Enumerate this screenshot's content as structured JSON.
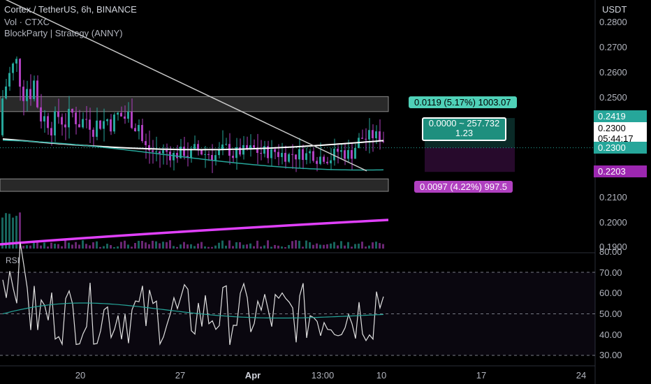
{
  "legend": {
    "title": "Cortex / TetherUS, 6h, BINANCE",
    "volume": "Vol · CTXC",
    "strategy": "BlockParty | Strategy (ANNY)"
  },
  "currency": "USDT",
  "price_axis": [
    "0.2800",
    "0.2700",
    "0.2600",
    "0.2500",
    "0.2100",
    "0.2000",
    "0.1900"
  ],
  "x_axis": [
    "20",
    "27",
    "Apr",
    "13:00",
    "10",
    "17",
    "24"
  ],
  "rsi": {
    "label": "RSI",
    "ticks": [
      "80.00",
      "70.00",
      "60.00",
      "50.00",
      "40.00",
      "30.00"
    ]
  },
  "price_tags": {
    "upper": "0.2419",
    "current": "0.2300",
    "countdown": "05:44:17",
    "current_line": "0.2300",
    "lower": "0.2203"
  },
  "position_tool": {
    "target": "0.0119 (5.17%) 1003.07",
    "center_line1": "0.0000 ~ 257.732",
    "center_line2": "1.23",
    "stop": "0.0097 (4.22%) 997.5"
  },
  "colors": {
    "up": "#26a69a",
    "down": "#b040c0",
    "magenta_line": "#e040fb",
    "white_line": "#ffffff",
    "tag_green": "#26a69a",
    "tag_purple": "#9c27b0"
  },
  "chart_data": {
    "type": "candlestick",
    "symbol": "Cortex / TetherUS",
    "interval": "6h",
    "exchange": "BINANCE",
    "yunit": "USDT",
    "ylim": [
      0.185,
      0.285
    ],
    "current_price": 0.23,
    "zones": [
      {
        "top": 0.2505,
        "bottom": 0.2445
      },
      {
        "top": 0.2175,
        "bottom": 0.2125
      }
    ],
    "trendline": {
      "from": [
        0,
        0.2905
      ],
      "to": [
        525,
        0.2207
      ]
    },
    "position": {
      "entry": 0.23,
      "target": 0.2419,
      "stop": 0.2203
    },
    "rsi_range": [
      25,
      82
    ],
    "rsi_levels": [
      70,
      50,
      30
    ]
  }
}
